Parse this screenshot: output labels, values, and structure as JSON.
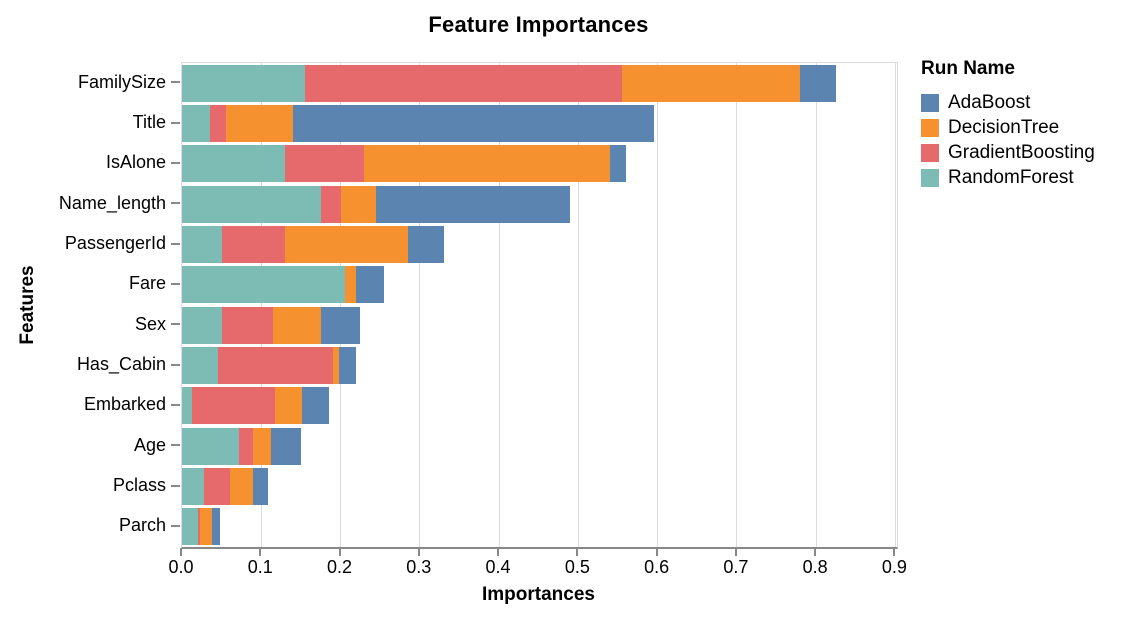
{
  "title": "Feature Importances",
  "chart_data": {
    "type": "bar",
    "orientation": "horizontal",
    "stacked": true,
    "title": "Feature Importances",
    "xlabel": "Importances",
    "ylabel": "Features",
    "legend_title": "Run Name",
    "legend_position": "right",
    "grid": true,
    "xlim": [
      0,
      0.902
    ],
    "x_tick_values": [
      0,
      0.1,
      0.2,
      0.3,
      0.4,
      0.5,
      0.6,
      0.7,
      0.8,
      0.9
    ],
    "x_tick_labels": [
      "0.0",
      "0.1",
      "0.2",
      "0.3",
      "0.4",
      "0.5",
      "0.6",
      "0.7",
      "0.8",
      "0.9"
    ],
    "categories": [
      "FamilySize",
      "Title",
      "IsAlone",
      "Name_length",
      "PassengerId",
      "Fare",
      "Sex",
      "Has_Cabin",
      "Embarked",
      "Age",
      "Pclass",
      "Parch"
    ],
    "stack_order_note": "segments drawn left-to-right: RandomForest, GradientBoosting, DecisionTree, AdaBoost",
    "series": [
      {
        "name": "RandomForest",
        "color": "#7dbcb5",
        "values": [
          0.155,
          0.035,
          0.13,
          0.175,
          0.05,
          0.205,
          0.05,
          0.045,
          0.012,
          0.072,
          0.028,
          0.02
        ]
      },
      {
        "name": "GradientBoosting",
        "color": "#e6696c",
        "values": [
          0.4,
          0.02,
          0.1,
          0.025,
          0.08,
          0.0,
          0.065,
          0.145,
          0.105,
          0.018,
          0.033,
          0.003
        ]
      },
      {
        "name": "DecisionTree",
        "color": "#f5922f",
        "values": [
          0.225,
          0.085,
          0.31,
          0.045,
          0.155,
          0.015,
          0.06,
          0.008,
          0.035,
          0.022,
          0.029,
          0.015
        ]
      },
      {
        "name": "AdaBoost",
        "color": "#5b84b1",
        "values": [
          0.045,
          0.455,
          0.02,
          0.245,
          0.045,
          0.035,
          0.05,
          0.022,
          0.033,
          0.038,
          0.018,
          0.01
        ]
      }
    ],
    "legend_order": [
      "AdaBoost",
      "DecisionTree",
      "GradientBoosting",
      "RandomForest"
    ],
    "grid_color": "#dcdcdc",
    "axis_color": "#888888",
    "text_color": "#000000"
  }
}
